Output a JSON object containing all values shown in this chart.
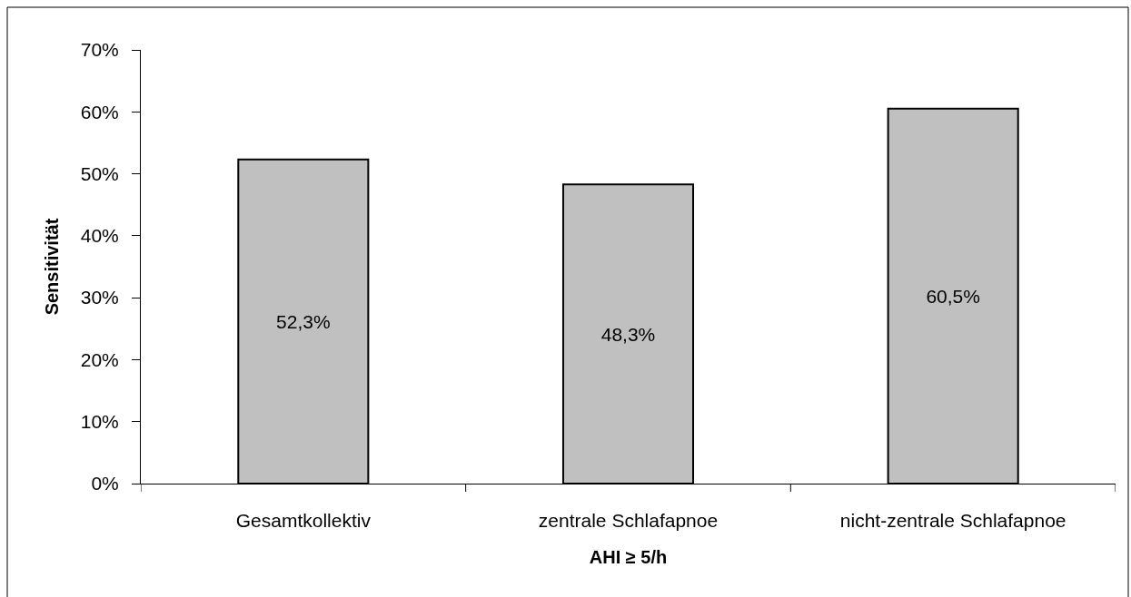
{
  "chart_data": {
    "type": "bar",
    "categories": [
      "Gesamtkollektiv",
      "zentrale Schlafapnoe",
      "nicht-zentrale Schlafapnoe"
    ],
    "values": [
      52.3,
      48.3,
      60.5
    ],
    "color": "#c0c0c0",
    "value_labels": [
      "52,3%",
      "48,3%",
      "60,5%"
    ],
    "xlabel": "AHI ≥ 5/h",
    "ylabel": "Sensitivität",
    "ylim": [
      0,
      70
    ],
    "yticks": [
      {
        "value": 0,
        "label": "0%"
      },
      {
        "value": 10,
        "label": "10%"
      },
      {
        "value": 20,
        "label": "20%"
      },
      {
        "value": 30,
        "label": "30%"
      },
      {
        "value": 40,
        "label": "40%"
      },
      {
        "value": 50,
        "label": "50%"
      },
      {
        "value": 60,
        "label": "60%"
      },
      {
        "value": 70,
        "label": "70%"
      }
    ]
  }
}
